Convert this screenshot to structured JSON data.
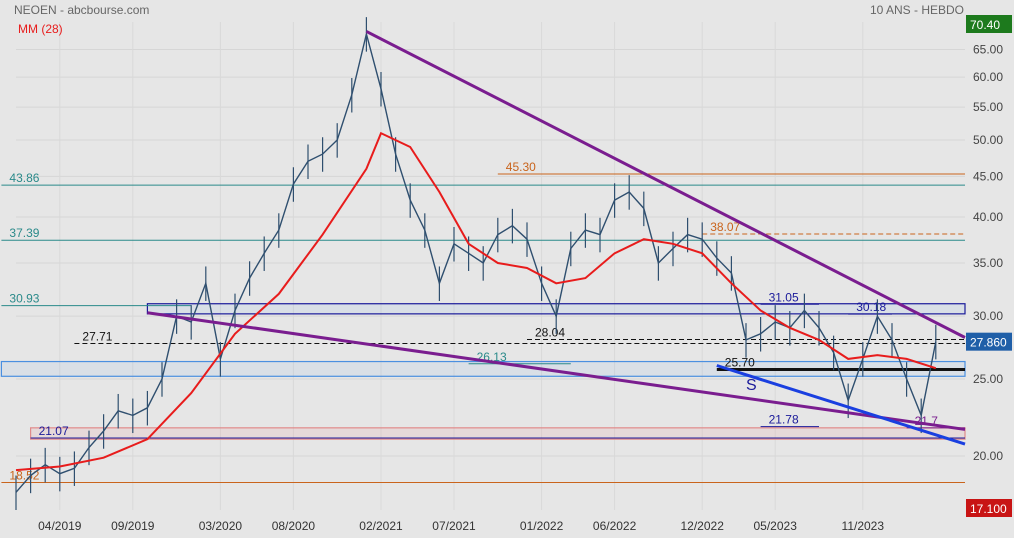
{
  "header": {
    "title": "NEOEN - abcbourse.com",
    "period": "10 ANS - HEBDO",
    "indicator": "MM (28)"
  },
  "colors": {
    "background": "#e6e6e6",
    "price": "#2f4f6f",
    "ma": "#e81c1c",
    "trend_purple": "#7a1d8f",
    "trend_blue": "#1a3fe0",
    "teal": "#2a8a8a",
    "orange": "#c9641c",
    "navy": "#1a1a9a",
    "badge_green": "#1d7a1d",
    "badge_blue": "#1f5fa8",
    "badge_red": "#c81414"
  },
  "chart_data": {
    "type": "line",
    "y_axis": {
      "min": 17.1,
      "max": 70.4,
      "scale": "log",
      "ticks": [
        "20.00",
        "25.00",
        "30.00",
        "35.00",
        "40.00",
        "45.00",
        "50.00",
        "55.00",
        "60.00",
        "65.00"
      ]
    },
    "x_axis": {
      "labels": [
        "04/2019",
        "09/2019",
        "03/2020",
        "08/2020",
        "02/2021",
        "07/2021",
        "01/2022",
        "06/2022",
        "12/2022",
        "05/2023",
        "11/2023"
      ]
    },
    "badges": {
      "high": "70.40",
      "last": "27.860",
      "low": "17.100"
    },
    "series": [
      {
        "name": "NEOEN",
        "points": [
          [
            "2019-01",
            18.0
          ],
          [
            "2019-02",
            18.9
          ],
          [
            "2019-03",
            19.5
          ],
          [
            "2019-04",
            19.0
          ],
          [
            "2019-05",
            19.3
          ],
          [
            "2019-06",
            20.5
          ],
          [
            "2019-07",
            21.5
          ],
          [
            "2019-08",
            22.8
          ],
          [
            "2019-09",
            22.5
          ],
          [
            "2019-10",
            23.0
          ],
          [
            "2019-11",
            25.0
          ],
          [
            "2019-12",
            30.0
          ],
          [
            "2020-01",
            29.5
          ],
          [
            "2020-02",
            33.0
          ],
          [
            "2020-03",
            26.5
          ],
          [
            "2020-04",
            30.5
          ],
          [
            "2020-05",
            33.5
          ],
          [
            "2020-06",
            36.0
          ],
          [
            "2020-07",
            38.5
          ],
          [
            "2020-08",
            44.0
          ],
          [
            "2020-09",
            47.0
          ],
          [
            "2020-10",
            48.0
          ],
          [
            "2020-11",
            50.0
          ],
          [
            "2020-12",
            57.0
          ],
          [
            "2021-01",
            68.0
          ],
          [
            "2021-02",
            58.0
          ],
          [
            "2021-03",
            48.0
          ],
          [
            "2021-04",
            42.0
          ],
          [
            "2021-05",
            38.5
          ],
          [
            "2021-06",
            33.0
          ],
          [
            "2021-07",
            37.0
          ],
          [
            "2021-08",
            36.0
          ],
          [
            "2021-09",
            35.0
          ],
          [
            "2021-10",
            38.0
          ],
          [
            "2021-11",
            39.0
          ],
          [
            "2021-12",
            37.5
          ],
          [
            "2022-01",
            33.0
          ],
          [
            "2022-02",
            30.0
          ],
          [
            "2022-03",
            36.5
          ],
          [
            "2022-04",
            38.5
          ],
          [
            "2022-05",
            38.0
          ],
          [
            "2022-06",
            42.0
          ],
          [
            "2022-07",
            43.0
          ],
          [
            "2022-08",
            41.0
          ],
          [
            "2022-09",
            35.0
          ],
          [
            "2022-10",
            36.5
          ],
          [
            "2022-11",
            38.0
          ],
          [
            "2022-12",
            37.5
          ],
          [
            "2023-01",
            35.5
          ],
          [
            "2023-02",
            34.0
          ],
          [
            "2023-03",
            28.0
          ],
          [
            "2023-04",
            28.5
          ],
          [
            "2023-05",
            29.5
          ],
          [
            "2023-06",
            29.0
          ],
          [
            "2023-07",
            30.5
          ],
          [
            "2023-08",
            29.0
          ],
          [
            "2023-09",
            27.0
          ],
          [
            "2023-10",
            23.5
          ],
          [
            "2023-11",
            26.5
          ],
          [
            "2023-12",
            30.0
          ],
          [
            "2024-01",
            28.0
          ],
          [
            "2024-02",
            25.0
          ],
          [
            "2024-03",
            22.5
          ],
          [
            "2024-04",
            27.86
          ]
        ]
      },
      {
        "name": "MM (28)",
        "points": [
          [
            "2019-01",
            19.2
          ],
          [
            "2019-04",
            19.4
          ],
          [
            "2019-07",
            19.9
          ],
          [
            "2019-10",
            21.0
          ],
          [
            "2020-01",
            24.0
          ],
          [
            "2020-04",
            28.5
          ],
          [
            "2020-07",
            32.0
          ],
          [
            "2020-10",
            38.0
          ],
          [
            "2021-01",
            46.0
          ],
          [
            "2021-02",
            51.0
          ],
          [
            "2021-04",
            49.0
          ],
          [
            "2021-06",
            43.0
          ],
          [
            "2021-08",
            37.0
          ],
          [
            "2021-10",
            35.0
          ],
          [
            "2021-12",
            34.5
          ],
          [
            "2022-02",
            33.0
          ],
          [
            "2022-04",
            33.5
          ],
          [
            "2022-06",
            36.0
          ],
          [
            "2022-08",
            37.5
          ],
          [
            "2022-10",
            37.0
          ],
          [
            "2022-12",
            36.0
          ],
          [
            "2023-02",
            33.0
          ],
          [
            "2023-04",
            30.5
          ],
          [
            "2023-06",
            29.0
          ],
          [
            "2023-08",
            28.0
          ],
          [
            "2023-10",
            26.5
          ],
          [
            "2023-12",
            26.8
          ],
          [
            "2024-02",
            26.5
          ],
          [
            "2024-04",
            25.8
          ]
        ]
      }
    ],
    "levels": [
      {
        "label": "43.86",
        "value": 43.86,
        "from": "2018-12",
        "to": "2024-06",
        "color": "teal"
      },
      {
        "label": "37.39",
        "value": 37.39,
        "from": "2018-12",
        "to": "2024-06",
        "color": "teal"
      },
      {
        "label": "30.93",
        "value": 30.93,
        "from": "2018-12",
        "to": "2020-01",
        "color": "teal"
      },
      {
        "label": "45.30",
        "value": 45.3,
        "from": "2021-10",
        "to": "2024-06",
        "color": "orange"
      },
      {
        "label": "38.07",
        "value": 38.07,
        "from": "2022-12",
        "to": "2024-06",
        "color": "orange",
        "dashed": true
      },
      {
        "label": "27.71",
        "value": 27.71,
        "from": "2019-05",
        "to": "2024-06",
        "color": "black",
        "dashed": true
      },
      {
        "label": "28.04",
        "value": 28.04,
        "from": "2021-12",
        "to": "2024-06",
        "color": "black",
        "dashed": true
      },
      {
        "label": "26.13",
        "value": 26.13,
        "from": "2021-08",
        "to": "2022-03",
        "color": "teal"
      },
      {
        "label": "25.70",
        "value": 25.7,
        "from": "2023-01",
        "to": "2024-06",
        "color": "black",
        "thick": true
      },
      {
        "label": "31.05",
        "value": 31.05,
        "from": "2023-04",
        "to": "2023-08",
        "color": "navy"
      },
      {
        "label": "30.18",
        "value": 30.18,
        "from": "2023-10",
        "to": "2024-01",
        "color": "navy"
      },
      {
        "label": "21.78",
        "value": 21.78,
        "from": "2023-04",
        "to": "2023-08",
        "color": "navy"
      },
      {
        "label": "21.07",
        "value": 21.07,
        "from": "2019-02",
        "to": "2024-06",
        "color": "navy"
      },
      {
        "label": "18.52",
        "value": 18.52,
        "from": "2018-12",
        "to": "2024-06",
        "color": "orange"
      },
      {
        "label": "21.7",
        "value": 21.7,
        "from": "2024-02",
        "to": "2024-06",
        "color": "purple"
      }
    ],
    "zones": [
      {
        "from_value": 30.2,
        "to_value": 31.1,
        "from": "2019-10",
        "to": "2024-06",
        "color": "navy"
      },
      {
        "from_value": 25.2,
        "to_value": 26.3,
        "from": "2018-12",
        "to": "2024-06",
        "color": "lightblue"
      },
      {
        "from_value": 21.0,
        "to_value": 21.7,
        "from": "2019-02",
        "to": "2024-06",
        "color": "pink"
      }
    ],
    "trendlines": [
      {
        "from": [
          "2021-01",
          68.5
        ],
        "to": [
          "2024-06",
          28.2
        ],
        "color": "purple"
      },
      {
        "from": [
          "2019-10",
          30.3
        ],
        "to": [
          "2024-06",
          21.6
        ],
        "color": "purple"
      },
      {
        "from": [
          "2023-01",
          26.0
        ],
        "to": [
          "2024-06",
          20.7
        ],
        "color": "blue"
      }
    ],
    "annotations": [
      "S"
    ]
  }
}
